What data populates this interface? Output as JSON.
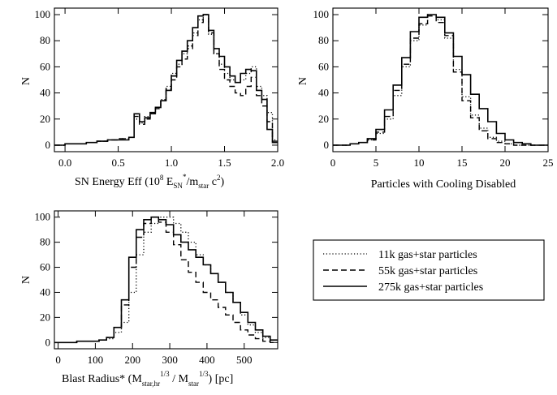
{
  "styles": {
    "series_dash": [
      "1.2 2.6",
      "7 4",
      ""
    ],
    "series_width": [
      1.3,
      1.4,
      1.6
    ]
  },
  "legend": {
    "placement": "right of bottom-left panel",
    "entries": [
      "11k gas+star particles",
      "55k gas+star particles",
      "275k gas+star particles"
    ]
  },
  "chart_data": [
    {
      "type": "histogram",
      "panel": "top-left",
      "ylabel": "N",
      "xlabel_parts": {
        "a": "SN Energy Eff (10",
        "b": "8",
        "c": " E",
        "d": "SN",
        "e": "*",
        "f": "/m",
        "g": "star",
        "h": " c",
        "i": "2",
        "j": ")"
      },
      "xlim": [
        -0.1,
        2.0
      ],
      "ylim": [
        -5,
        105
      ],
      "xticks": [
        0.0,
        0.5,
        1.0,
        1.5,
        2.0
      ],
      "xtick_labels": [
        "0.0",
        "0.5",
        "1.0",
        "1.5",
        "2.0"
      ],
      "yticks": [
        0,
        20,
        40,
        60,
        80,
        100
      ],
      "ytick_labels": [
        "0",
        "20",
        "40",
        "60",
        "80",
        "100"
      ],
      "x_edges": [
        -0.1,
        0.0,
        0.1,
        0.2,
        0.3,
        0.4,
        0.5,
        0.6,
        0.65,
        0.7,
        0.75,
        0.8,
        0.85,
        0.9,
        0.95,
        1.0,
        1.05,
        1.1,
        1.15,
        1.2,
        1.25,
        1.3,
        1.35,
        1.4,
        1.45,
        1.5,
        1.55,
        1.6,
        1.65,
        1.7,
        1.75,
        1.8,
        1.85,
        1.9,
        1.95,
        2.0
      ],
      "series": [
        {
          "name": "11k gas+star particles",
          "values": [
            0,
            1,
            1,
            2,
            3,
            4,
            5,
            6,
            20,
            17,
            22,
            24,
            28,
            35,
            45,
            55,
            62,
            70,
            76,
            86,
            96,
            100,
            85,
            70,
            62,
            55,
            50,
            48,
            50,
            55,
            60,
            45,
            38,
            25,
            4
          ]
        },
        {
          "name": "55k gas+star particles",
          "values": [
            0,
            1,
            1,
            2,
            3,
            4,
            5,
            6,
            22,
            16,
            20,
            24,
            28,
            34,
            43,
            50,
            60,
            66,
            74,
            84,
            94,
            100,
            86,
            70,
            58,
            50,
            45,
            40,
            38,
            45,
            52,
            38,
            30,
            18,
            3
          ]
        },
        {
          "name": "275k gas+star particles",
          "values": [
            0,
            1,
            1,
            2,
            3,
            4,
            4,
            6,
            24,
            18,
            21,
            25,
            29,
            34,
            42,
            53,
            65,
            72,
            80,
            90,
            99,
            100,
            88,
            74,
            68,
            60,
            53,
            48,
            55,
            58,
            57,
            42,
            35,
            12,
            2
          ]
        }
      ]
    },
    {
      "type": "histogram",
      "panel": "top-right",
      "ylabel": "N",
      "xlabel": "Particles with Cooling Disabled",
      "xlim": [
        0,
        25
      ],
      "ylim": [
        -5,
        105
      ],
      "xticks": [
        0,
        5,
        10,
        15,
        20,
        25
      ],
      "xtick_labels": [
        "0",
        "5",
        "10",
        "15",
        "20",
        "25"
      ],
      "yticks": [
        0,
        20,
        40,
        60,
        80,
        100
      ],
      "ytick_labels": [
        "0",
        "20",
        "40",
        "60",
        "80",
        "100"
      ],
      "x_edges": [
        0,
        1,
        2,
        3,
        4,
        5,
        6,
        7,
        8,
        9,
        10,
        11,
        12,
        13,
        14,
        15,
        16,
        17,
        18,
        19,
        20,
        21,
        22,
        23,
        24,
        25
      ],
      "series": [
        {
          "name": "11k gas+star particles",
          "values": [
            0,
            0,
            1,
            2,
            4,
            9,
            20,
            38,
            60,
            80,
            92,
            100,
            96,
            82,
            58,
            37,
            23,
            13,
            6,
            3,
            1,
            0,
            0,
            0,
            0
          ]
        },
        {
          "name": "55k gas+star particles",
          "values": [
            0,
            0,
            1,
            2,
            4,
            10,
            22,
            42,
            62,
            82,
            93,
            99,
            94,
            84,
            56,
            34,
            21,
            11,
            5,
            2,
            1,
            0,
            0,
            0,
            0
          ]
        },
        {
          "name": "275k gas+star particles",
          "values": [
            0,
            0,
            1,
            2,
            5,
            12,
            27,
            46,
            67,
            87,
            98,
            100,
            98,
            86,
            68,
            54,
            39,
            28,
            18,
            9,
            4,
            2,
            1,
            0,
            0
          ]
        }
      ]
    },
    {
      "type": "histogram",
      "panel": "bottom-left",
      "ylabel": "N",
      "xlabel_parts": {
        "a": "Blast Radius* (M",
        "b": "star,hr",
        "c": "1/3",
        "d": " / M",
        "e": "star",
        "f": "1/3",
        "g": ") [pc]"
      },
      "xlim": [
        -10,
        590
      ],
      "ylim": [
        -5,
        105
      ],
      "xticks": [
        0,
        100,
        200,
        300,
        400,
        500
      ],
      "xtick_labels": [
        "0",
        "100",
        "200",
        "300",
        "400",
        "500"
      ],
      "yticks": [
        0,
        20,
        40,
        60,
        80,
        100
      ],
      "ytick_labels": [
        "0",
        "20",
        "40",
        "60",
        "80",
        "100"
      ],
      "x_edges": [
        -10,
        10,
        30,
        50,
        70,
        90,
        110,
        130,
        150,
        170,
        190,
        210,
        230,
        250,
        270,
        290,
        310,
        330,
        350,
        370,
        390,
        410,
        430,
        450,
        470,
        490,
        510,
        530,
        550,
        570,
        590
      ],
      "series": [
        {
          "name": "11k gas+star particles",
          "values": [
            0,
            0,
            0,
            1,
            1,
            1,
            2,
            3,
            8,
            16,
            40,
            70,
            88,
            95,
            100,
            100,
            95,
            88,
            80,
            70,
            62,
            55,
            48,
            40,
            32,
            22,
            14,
            8,
            4,
            2
          ]
        },
        {
          "name": "55k gas+star particles",
          "values": [
            0,
            0,
            0,
            1,
            1,
            1,
            2,
            4,
            12,
            30,
            60,
            84,
            95,
            100,
            96,
            88,
            78,
            66,
            56,
            48,
            40,
            34,
            28,
            22,
            16,
            10,
            6,
            3,
            1,
            0
          ]
        },
        {
          "name": "275k gas+star particles",
          "values": [
            0,
            0,
            0,
            1,
            1,
            1,
            2,
            4,
            12,
            34,
            68,
            90,
            98,
            100,
            98,
            94,
            86,
            80,
            74,
            68,
            62,
            55,
            48,
            40,
            32,
            24,
            16,
            10,
            5,
            2
          ]
        }
      ]
    }
  ]
}
